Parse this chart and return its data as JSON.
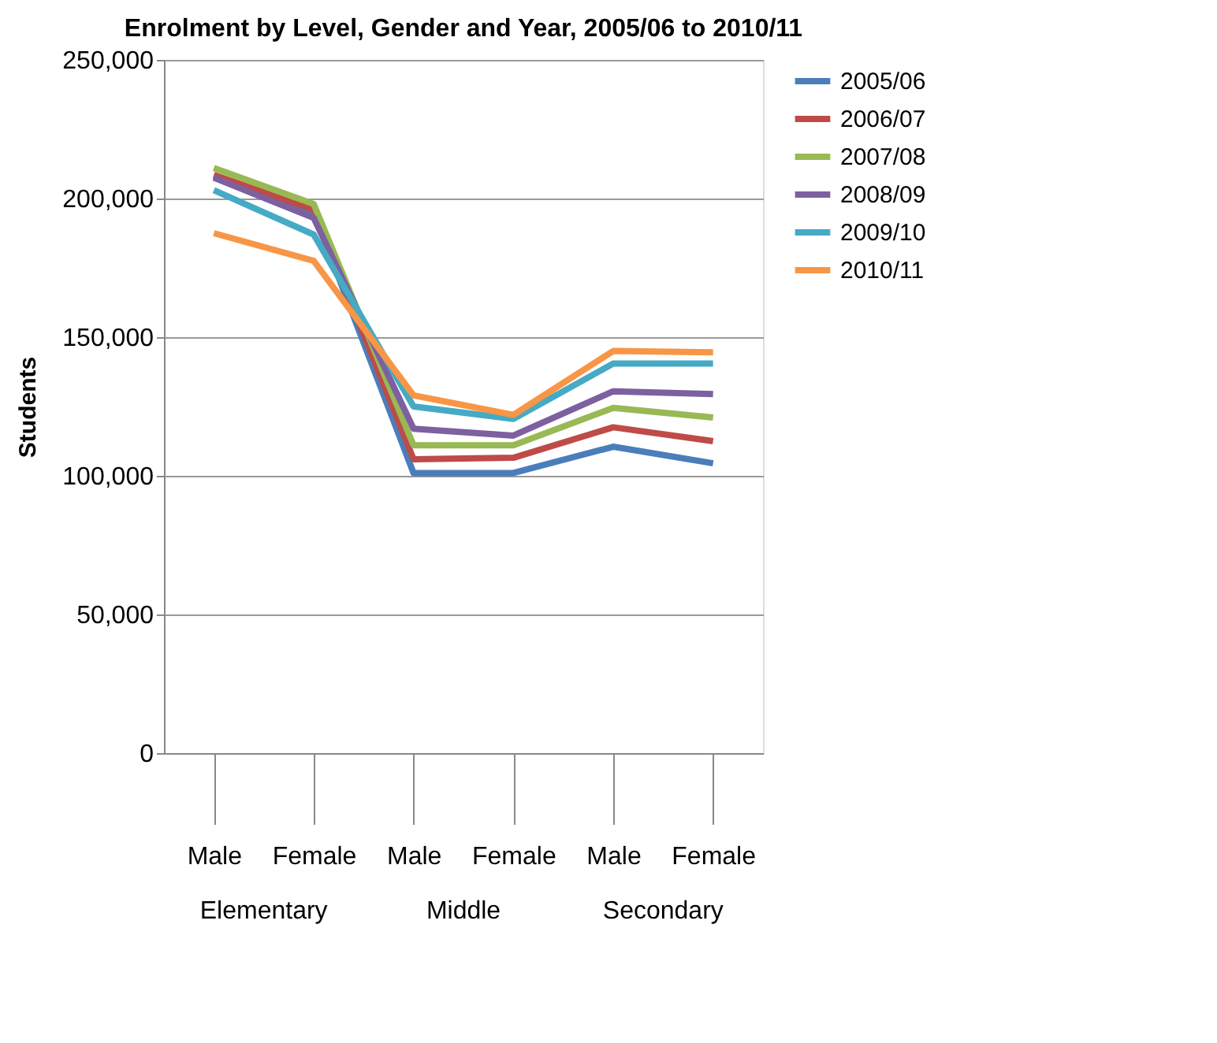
{
  "chart_data": {
    "type": "line",
    "title": "Enrolment by Level, Gender and Year, 2005/06 to 2010/11",
    "ylabel": "Students",
    "categories": [
      "Male",
      "Female",
      "Male",
      "Female",
      "Male",
      "Female"
    ],
    "annotations": [
      "Elementary",
      "Middle",
      "Secondary"
    ],
    "series": [
      {
        "name": "2005/06",
        "color": "#4a7ebb",
        "values": [
          208000,
          195000,
          101000,
          101000,
          110500,
          104500
        ]
      },
      {
        "name": "2006/07",
        "color": "#be4b48",
        "values": [
          208500,
          196000,
          106000,
          106500,
          117500,
          112500
        ]
      },
      {
        "name": "2007/08",
        "color": "#98b954",
        "values": [
          211000,
          198000,
          111000,
          111000,
          124500,
          121000
        ]
      },
      {
        "name": "2008/09",
        "color": "#7d60a0",
        "values": [
          207500,
          193000,
          117000,
          114500,
          130500,
          129500
        ]
      },
      {
        "name": "2009/10",
        "color": "#46aac5",
        "values": [
          203000,
          187000,
          125000,
          120500,
          140500,
          140500
        ]
      },
      {
        "name": "2010/11",
        "color": "#f79646",
        "values": [
          187500,
          177500,
          129000,
          122000,
          145000,
          144500
        ]
      }
    ],
    "ylim": [
      0,
      250000
    ],
    "yticks": [
      0,
      {
        "value": 50000,
        "label": "50,000"
      },
      {
        "value": 100000,
        "label": "100,000"
      },
      {
        "value": 150000,
        "label": "150,000"
      },
      {
        "value": 200000,
        "label": "200,000"
      },
      {
        "value": 250000,
        "label": "250,000"
      }
    ],
    "grid": "y",
    "legend": "right",
    "marker": "none",
    "line_style": "solid"
  }
}
